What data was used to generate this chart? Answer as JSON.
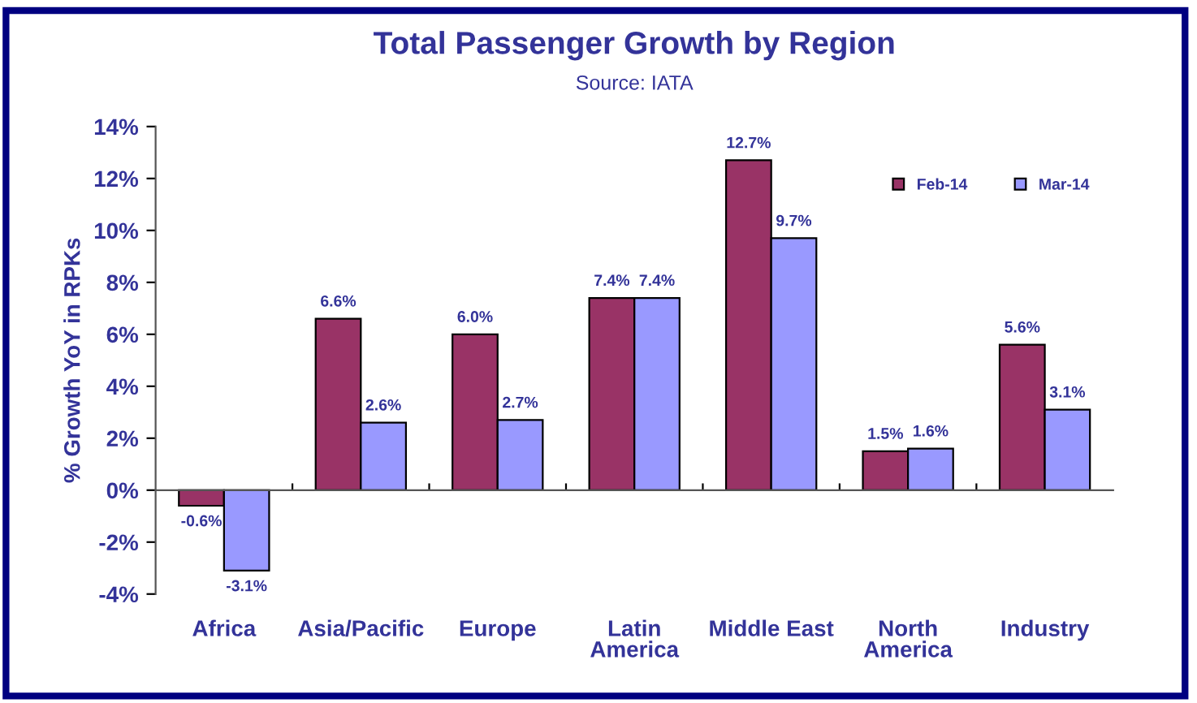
{
  "chart_data": {
    "type": "bar",
    "title": "Total Passenger Growth by Region",
    "subtitle": "Source: IATA",
    "ylabel": "% Growth YoY in RPKs",
    "categories": [
      "Africa",
      "Asia/Pacific",
      "Europe",
      "Latin\nAmerica",
      "Middle East",
      "North\nAmerica",
      "Industry"
    ],
    "series": [
      {
        "name": "Feb-14",
        "color": "#993366",
        "values": [
          -0.6,
          6.6,
          6.0,
          7.4,
          12.7,
          1.5,
          5.6
        ],
        "value_labels": [
          "-0.6%",
          "6.6%",
          "6.0%",
          "7.4%",
          "12.7%",
          "1.5%",
          "5.6%"
        ]
      },
      {
        "name": "Mar-14",
        "color": "#9999ff",
        "values": [
          -3.1,
          2.6,
          2.7,
          7.4,
          9.7,
          1.6,
          3.1
        ],
        "value_labels": [
          "-3.1%",
          "2.6%",
          "2.7%",
          "7.4%",
          "9.7%",
          "1.6%",
          "3.1%"
        ]
      }
    ],
    "ylim": [
      -4,
      14
    ],
    "yticks": [
      {
        "value": -4,
        "label": "-4%"
      },
      {
        "value": -2,
        "label": "-2%"
      },
      {
        "value": 0,
        "label": "0%"
      },
      {
        "value": 2,
        "label": "2%"
      },
      {
        "value": 4,
        "label": "4%"
      },
      {
        "value": 6,
        "label": "6%"
      },
      {
        "value": 8,
        "label": "8%"
      },
      {
        "value": 10,
        "label": "10%"
      },
      {
        "value": 12,
        "label": "12%"
      },
      {
        "value": 14,
        "label": "14%"
      }
    ],
    "legend": "top right"
  }
}
